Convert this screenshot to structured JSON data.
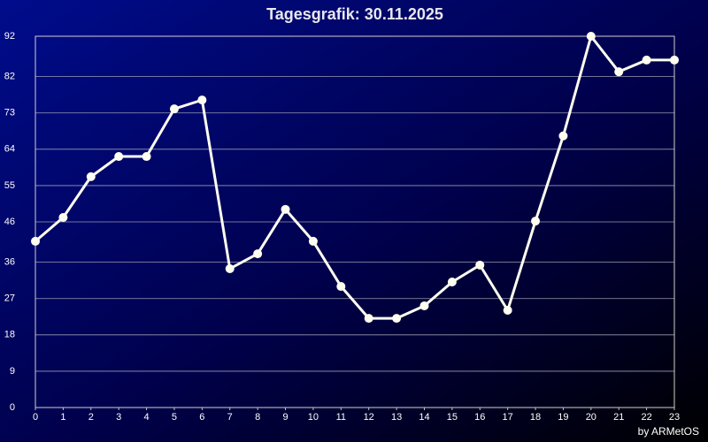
{
  "chart_data": {
    "type": "line",
    "title": "Tagesgrafik: 30.11.2025",
    "credit": "by ARMetOS",
    "x": [
      0,
      1,
      2,
      3,
      4,
      5,
      6,
      7,
      8,
      9,
      10,
      11,
      12,
      13,
      14,
      15,
      16,
      17,
      18,
      19,
      20,
      21,
      22,
      23
    ],
    "series": [
      {
        "color": "#fffff0",
        "values": [
          41.2,
          47.1,
          57.2,
          62.2,
          62.2,
          74.0,
          76.2,
          34.4,
          38.1,
          49.1,
          41.2,
          30.0,
          22.1,
          22.1,
          25.2,
          31.1,
          35.3,
          24.1,
          46.2,
          67.3,
          92,
          83.2,
          86.1,
          86.1
        ]
      }
    ],
    "xlim": [
      0,
      23
    ],
    "xticks": [
      0,
      1,
      2,
      3,
      4,
      5,
      6,
      7,
      8,
      9,
      10,
      11,
      12,
      13,
      14,
      15,
      16,
      17,
      18,
      19,
      20,
      21,
      22,
      23
    ],
    "ylim": [
      0,
      92
    ],
    "yticks": [
      0,
      9,
      18,
      27,
      36,
      46,
      55,
      64,
      73,
      82,
      92
    ],
    "grid": true
  }
}
